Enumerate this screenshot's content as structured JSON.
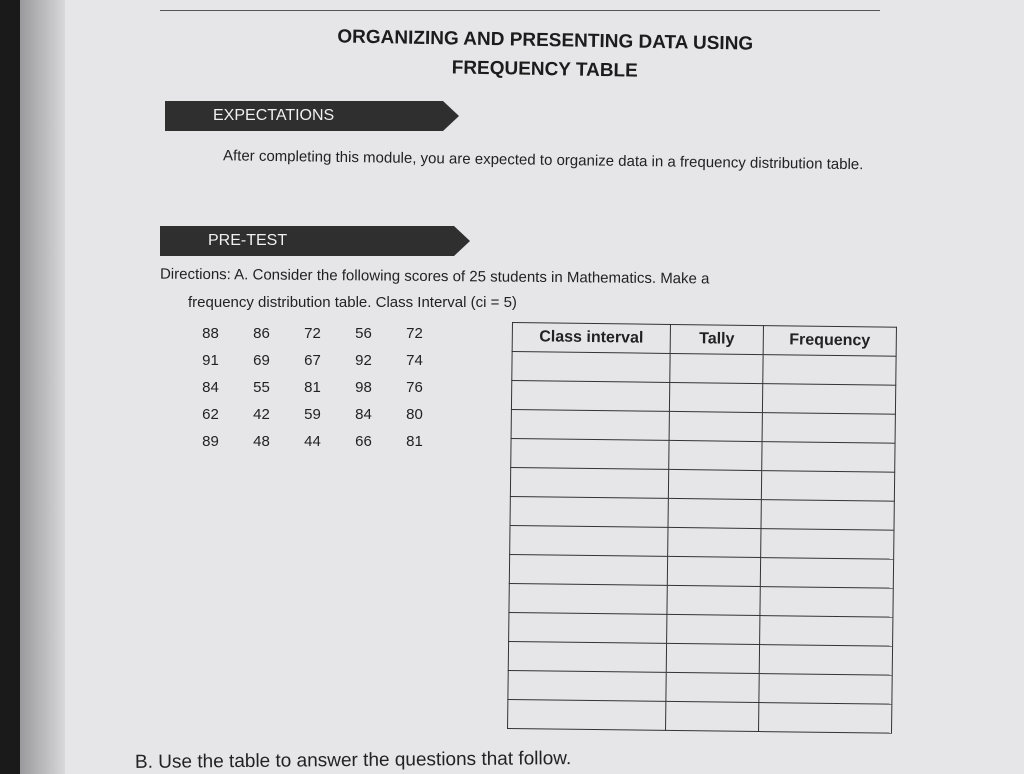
{
  "title_line1": "ORGANIZING AND PRESENTING DATA USING",
  "title_line2": "FREQUENCY TABLE",
  "expectations": {
    "label": "EXPECTATIONS",
    "text": "After completing this module, you are expected to organize data in a frequency distribution table."
  },
  "pretest": {
    "label": "PRE-TEST",
    "directions_line1": "Directions: A. Consider the following scores of 25 students in Mathematics. Make a",
    "directions_line2": "frequency distribution table. Class Interval (ci = 5)"
  },
  "scores": [
    [
      "88",
      "86",
      "72",
      "56",
      "72"
    ],
    [
      "91",
      "69",
      "67",
      "92",
      "74"
    ],
    [
      "84",
      "55",
      "81",
      "98",
      "76"
    ],
    [
      "62",
      "42",
      "59",
      "84",
      "80"
    ],
    [
      "89",
      "48",
      "44",
      "66",
      "81"
    ]
  ],
  "table": {
    "headers": [
      "Class interval",
      "Tally",
      "Frequency"
    ],
    "empty_rows": 13
  },
  "part_b": "B. Use the table to answer the questions that follow."
}
